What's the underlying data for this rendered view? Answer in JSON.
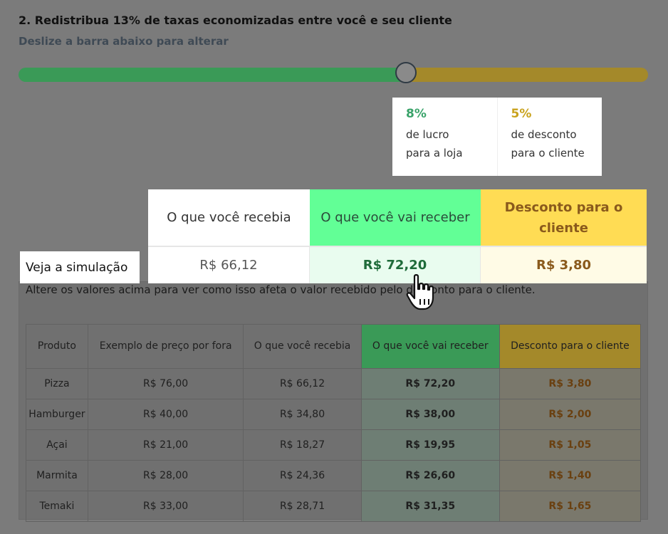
{
  "header": {
    "title": "2. Redistribua 13% de taxas economizadas entre você e seu cliente",
    "subtitle": "Deslize a barra abaixo para alterar"
  },
  "slider": {
    "store_fraction": 0.615,
    "colors": {
      "store": "#3a9a57",
      "client": "#a4892a"
    }
  },
  "split": {
    "store": {
      "percent": "8%",
      "line1": "de lucro",
      "line2": "para a loja"
    },
    "client": {
      "percent": "5%",
      "line1": "de desconto",
      "line2": "para o cliente"
    }
  },
  "simulation": {
    "label": "Veja a simulação",
    "headers": {
      "before": "O que você recebia",
      "receive": "O que você vai receber",
      "discount": "Desconto para o cliente"
    },
    "values": {
      "before": "R$ 66,12",
      "receive": "R$ 72,20",
      "discount": "R$ 3,80"
    },
    "colors": {
      "receive": "#62ff96",
      "discount": "#ffdc54"
    }
  },
  "panel": {
    "note": "Altere os valores acima para ver como isso afeta o valor recebido pelo desconto para o cliente."
  },
  "table": {
    "headers": [
      "Produto",
      "Exemplo de preço por fora",
      "O que você recebia",
      "O que você vai receber",
      "Desconto para o cliente"
    ],
    "rows": [
      [
        "Pizza",
        "R$ 76,00",
        "R$ 66,12",
        "R$ 72,20",
        "R$ 3,80"
      ],
      [
        "Hamburger",
        "R$ 40,00",
        "R$ 34,80",
        "R$ 38,00",
        "R$ 2,00"
      ],
      [
        "Açai",
        "R$ 21,00",
        "R$ 18,27",
        "R$ 19,95",
        "R$ 1,05"
      ],
      [
        "Marmita",
        "R$ 28,00",
        "R$ 24,36",
        "R$ 26,60",
        "R$ 1,40"
      ],
      [
        "Temaki",
        "R$ 33,00",
        "R$ 28,71",
        "R$ 31,35",
        "R$ 1,65"
      ]
    ]
  }
}
